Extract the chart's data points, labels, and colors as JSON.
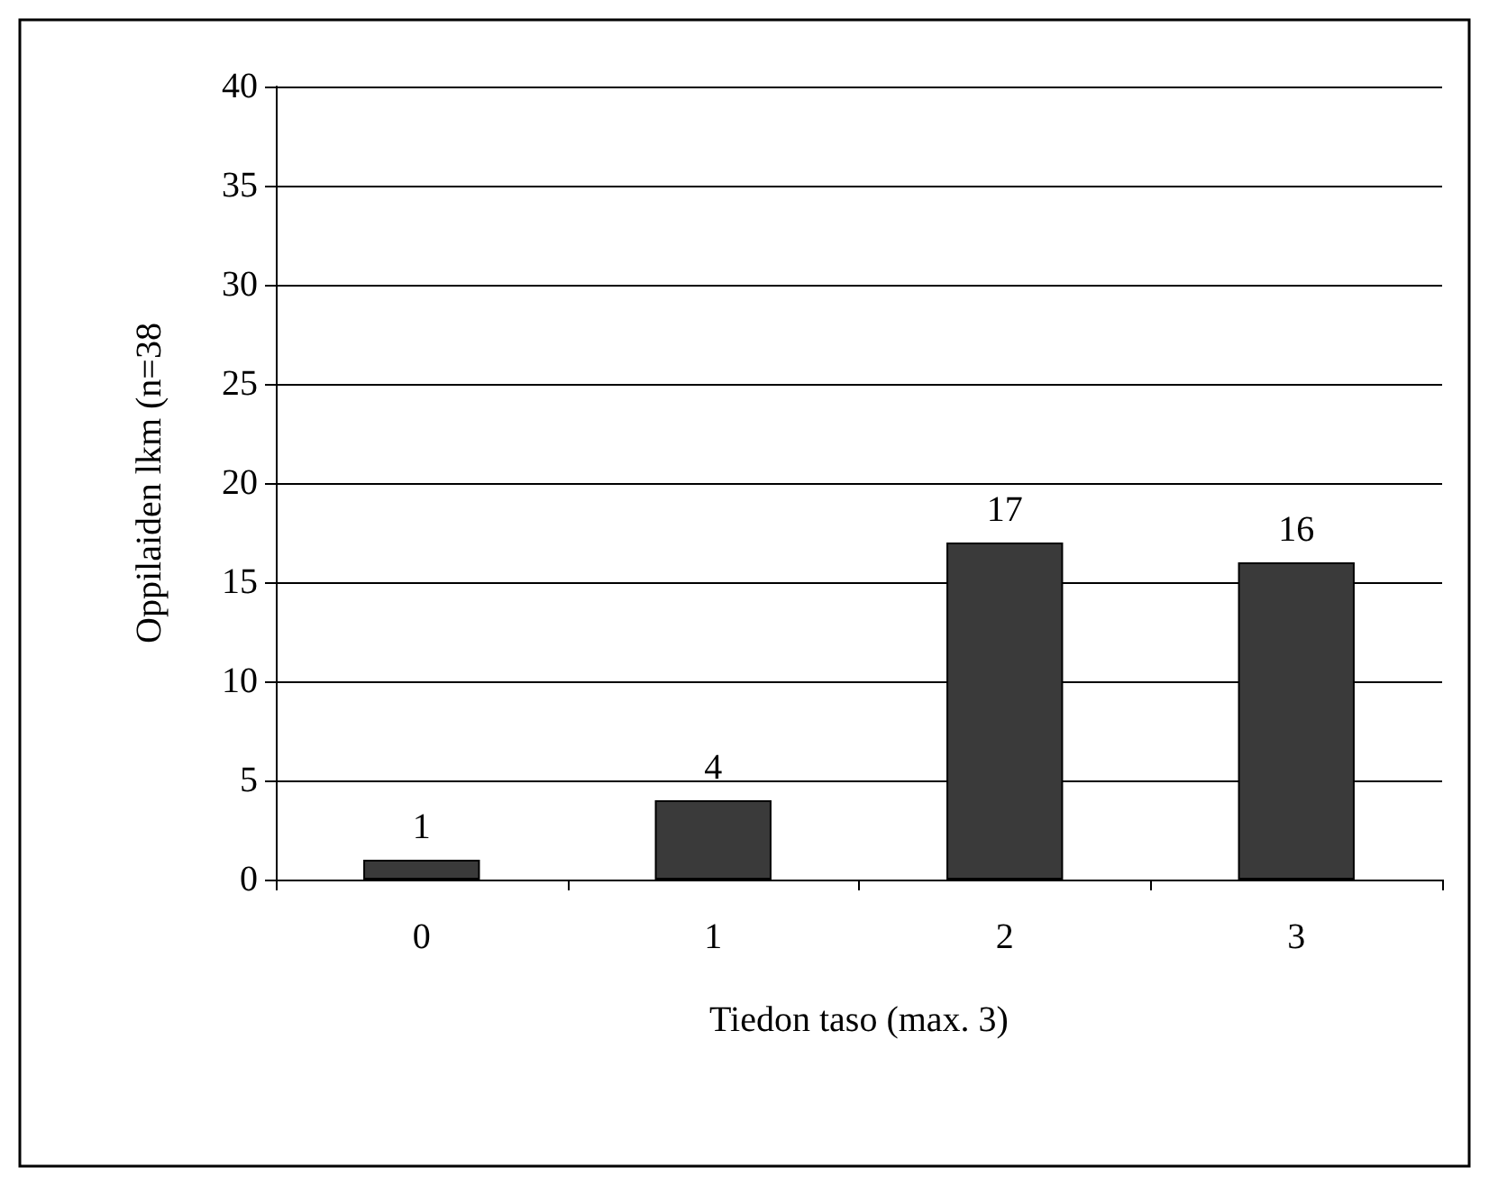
{
  "chart_data": {
    "type": "bar",
    "xlabel": "Tiedon taso (max. 3)",
    "ylabel": "Oppilaiden lkm (n=38",
    "categories": [
      "0",
      "1",
      "2",
      "3"
    ],
    "values": [
      1,
      4,
      17,
      16
    ],
    "color": "#3a3a3a",
    "ylim": [
      0,
      40
    ],
    "yticks": [
      0,
      5,
      10,
      15,
      20,
      25,
      30,
      35,
      40
    ],
    "grid": "y",
    "data_labels": true
  }
}
